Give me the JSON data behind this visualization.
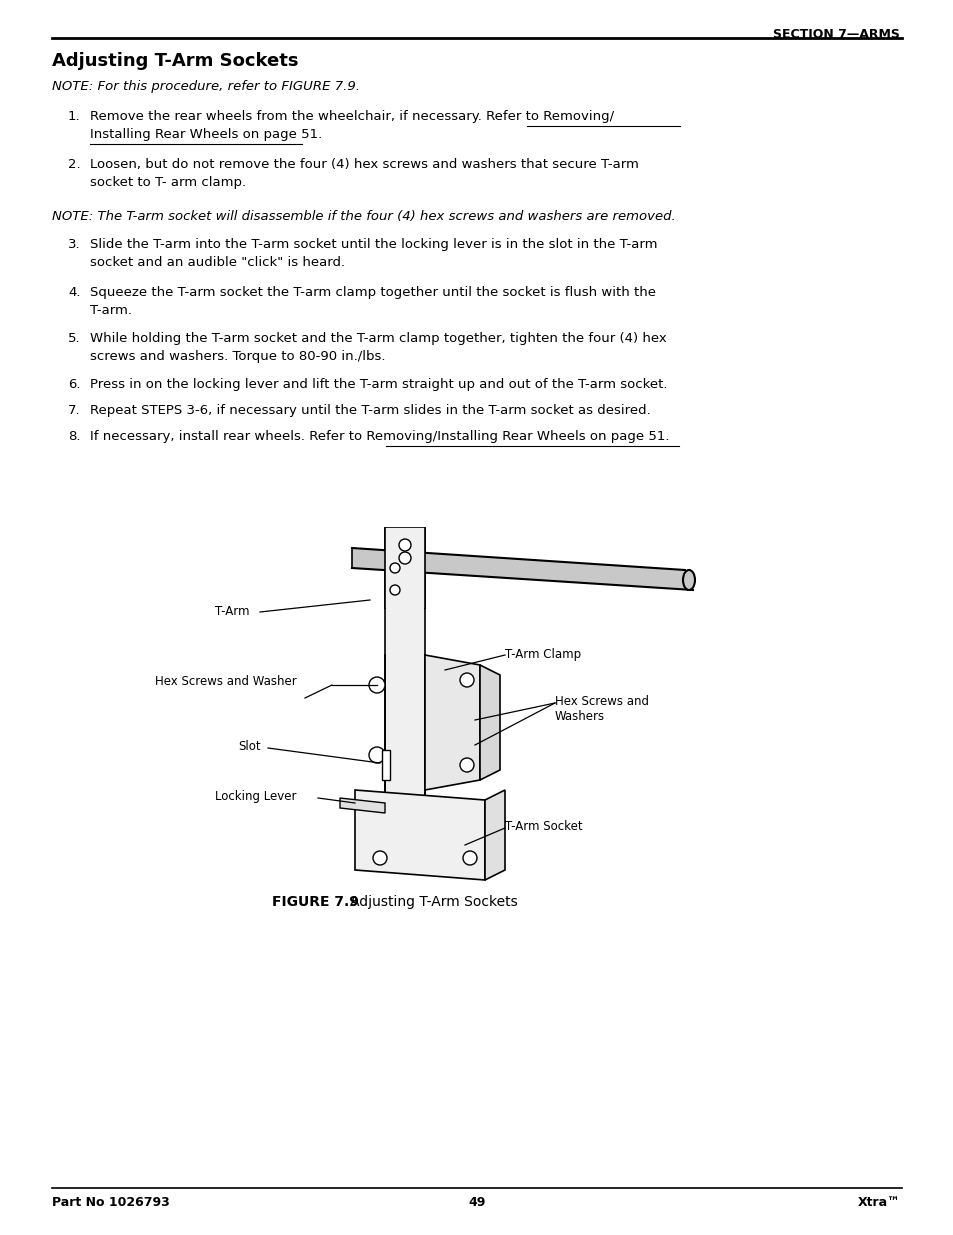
{
  "bg_color": "#ffffff",
  "section_header": "SECTION 7—ARMS",
  "title": "Adjusting T-Arm Sockets",
  "note1": "NOTE: For this procedure, refer to FIGURE 7.9.",
  "figure_caption_bold": "FIGURE 7.9",
  "figure_caption_rest": "   Adjusting T-Arm Sockets",
  "footer_left": "Part No 1026793",
  "footer_center": "49",
  "footer_right": "Xtra™"
}
